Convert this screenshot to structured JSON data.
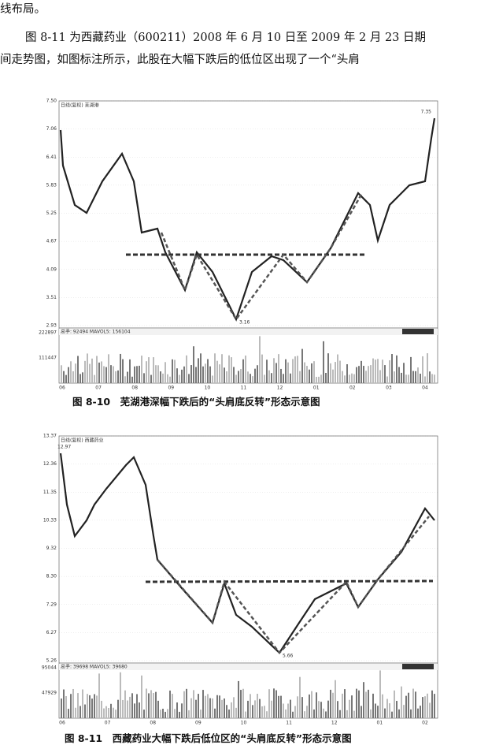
{
  "text": {
    "line1": "线布局。",
    "line2": "图 8-11 为西藏药业（600211）2008 年 6 月 10 日至 2009 年 2 月 23 日期",
    "line3": "间走势图，如图标注所示，此股在大幅下跌后的低位区出现了一个“头肩"
  },
  "figures": [
    {
      "header": "日线(复权)  芜湖港",
      "yticks": [
        "7.50",
        "7.06",
        "6.41",
        "5.83",
        "5.25",
        "4.67",
        "4.09",
        "3.51",
        "2.93"
      ],
      "high_label": "7.35",
      "low_label": "3.16",
      "volume_header": "总手: 92494  MAVOL5: 156104",
      "volume_ticks": [
        "222897",
        "111447"
      ],
      "xticks": [
        "06",
        "07",
        "08",
        "09",
        "10",
        "11",
        "12",
        "01",
        "02",
        "03",
        "04"
      ],
      "caption": "图 8-10　芜湖港深幅下跌后的“头肩底反转”形态示意图"
    },
    {
      "header": "日线(复权)  西藏药业",
      "yticks": [
        "13.37",
        "12.36",
        "11.35",
        "10.33",
        "9.32",
        "8.30",
        "7.29",
        "6.27",
        "5.26"
      ],
      "high_label": "12.97",
      "low_label": "5.66",
      "volume_header": "总手: 39698  MAVOL5: 39680",
      "volume_ticks": [
        "95044",
        "47929"
      ],
      "xticks": [
        "06",
        "07",
        "08",
        "09",
        "10",
        "11",
        "12",
        "01",
        "02"
      ],
      "caption": "图 8-11　西藏药业大幅下跌后低位区的“头肩底反转”形态示意图"
    }
  ]
}
